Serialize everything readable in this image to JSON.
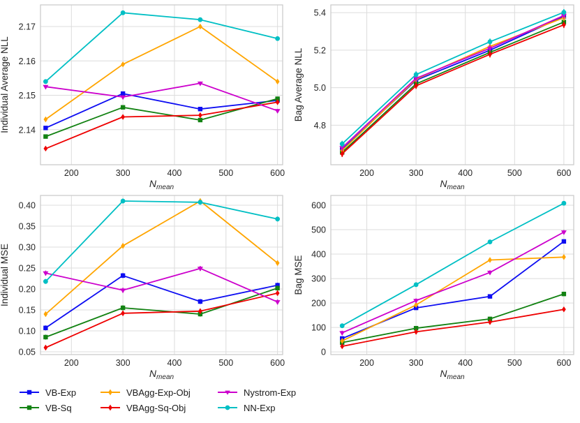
{
  "figure": {
    "xlabel_base": "N",
    "xlabel_sub": "mean",
    "background": "#ffffff",
    "grid_color": "#dcdcdc",
    "spine_color": "#c9c9c9",
    "tick_text_color": "#262626"
  },
  "legend": {
    "position": "bottom-left",
    "entries": [
      {
        "label": "VB-Exp",
        "color": "#0d0df2",
        "marker": "square"
      },
      {
        "label": "VB-Sq",
        "color": "#128212",
        "marker": "square"
      },
      {
        "label": "VBAgg-Exp-Obj",
        "color": "#ffa500",
        "marker": "diamond"
      },
      {
        "label": "VBAgg-Sq-Obj",
        "color": "#ee0000",
        "marker": "diamond"
      },
      {
        "label": "Nystrom-Exp",
        "color": "#cc00cc",
        "marker": "triangle-down"
      },
      {
        "label": "NN-Exp",
        "color": "#00bfc4",
        "marker": "circle"
      }
    ]
  },
  "chart_data": [
    {
      "id": "individual-average-nll",
      "type": "line",
      "title": "",
      "xlabel": "N_mean",
      "ylabel": "Individual Average NLL",
      "x": [
        150,
        300,
        450,
        600
      ],
      "xlim": [
        140,
        610
      ],
      "ylim": [
        2.1298,
        2.1763
      ],
      "xticks": [
        200,
        300,
        400,
        500,
        600
      ],
      "xtick_labels": [
        "200",
        "300",
        "400",
        "500",
        "600"
      ],
      "yticks": [
        2.14,
        2.15,
        2.16,
        2.17
      ],
      "ytick_labels": [
        "2.14",
        "2.15",
        "2.16",
        "2.17"
      ],
      "grid": true,
      "series": [
        {
          "name": "VB-Exp",
          "values": [
            2.1405,
            2.1505,
            2.146,
            2.1485
          ]
        },
        {
          "name": "VB-Sq",
          "values": [
            2.138,
            2.1465,
            2.1428,
            2.149
          ]
        },
        {
          "name": "VBAgg-Exp-Obj",
          "values": [
            2.143,
            2.159,
            2.17,
            2.154
          ]
        },
        {
          "name": "VBAgg-Sq-Obj",
          "values": [
            2.1345,
            2.1437,
            2.1442,
            2.148
          ]
        },
        {
          "name": "Nystrom-Exp",
          "values": [
            2.1525,
            2.1495,
            2.1535,
            2.1455
          ]
        },
        {
          "name": "NN-Exp",
          "values": [
            2.154,
            2.174,
            2.172,
            2.1665
          ]
        }
      ]
    },
    {
      "id": "bag-average-nll",
      "type": "line",
      "title": "",
      "xlabel": "N_mean",
      "ylabel": "Bag Average NLL",
      "x": [
        150,
        300,
        450,
        600
      ],
      "xlim": [
        127,
        620
      ],
      "ylim": [
        4.589,
        5.4415
      ],
      "xticks": [
        200,
        300,
        400,
        500,
        600
      ],
      "xtick_labels": [
        "200",
        "300",
        "400",
        "500",
        "600"
      ],
      "yticks": [
        4.8,
        5.0,
        5.2,
        5.4
      ],
      "ytick_labels": [
        "4.8",
        "5.0",
        "5.2",
        "5.4"
      ],
      "grid": true,
      "series": [
        {
          "name": "VB-Exp",
          "values": [
            4.67,
            5.04,
            5.2,
            5.38
          ]
        },
        {
          "name": "VB-Sq",
          "values": [
            4.655,
            5.02,
            5.188,
            5.35
          ]
        },
        {
          "name": "VBAgg-Exp-Obj",
          "values": [
            4.665,
            5.045,
            5.22,
            5.373
          ]
        },
        {
          "name": "VBAgg-Sq-Obj",
          "values": [
            4.647,
            5.01,
            5.178,
            5.335
          ]
        },
        {
          "name": "Nystrom-Exp",
          "values": [
            4.68,
            5.05,
            5.21,
            5.385
          ]
        },
        {
          "name": "NN-Exp",
          "values": [
            4.7,
            5.07,
            5.245,
            5.402
          ]
        }
      ]
    },
    {
      "id": "individual-mse",
      "type": "line",
      "title": "",
      "xlabel": "N_mean",
      "ylabel": "Individual MSE",
      "x": [
        150,
        300,
        450,
        600
      ],
      "xlim": [
        140,
        610
      ],
      "ylim": [
        0.0433,
        0.4233
      ],
      "xticks": [
        200,
        300,
        400,
        500,
        600
      ],
      "xtick_labels": [
        "200",
        "300",
        "400",
        "500",
        "600"
      ],
      "yticks": [
        0.05,
        0.1,
        0.15,
        0.2,
        0.25,
        0.3,
        0.35,
        0.4
      ],
      "ytick_labels": [
        "0.05",
        "0.10",
        "0.15",
        "0.20",
        "0.25",
        "0.30",
        "0.35",
        "0.40"
      ],
      "grid": true,
      "series": [
        {
          "name": "VB-Exp",
          "values": [
            0.107,
            0.232,
            0.17,
            0.209
          ]
        },
        {
          "name": "VB-Sq",
          "values": [
            0.085,
            0.155,
            0.14,
            0.202
          ]
        },
        {
          "name": "VBAgg-Exp-Obj",
          "values": [
            0.14,
            0.303,
            0.41,
            0.262
          ]
        },
        {
          "name": "VBAgg-Sq-Obj",
          "values": [
            0.06,
            0.142,
            0.147,
            0.19
          ]
        },
        {
          "name": "Nystrom-Exp",
          "values": [
            0.238,
            0.197,
            0.249,
            0.169
          ]
        },
        {
          "name": "NN-Exp",
          "values": [
            0.218,
            0.41,
            0.407,
            0.367
          ]
        }
      ]
    },
    {
      "id": "bag-mse",
      "type": "line",
      "title": "",
      "xlabel": "N_mean",
      "ylabel": "Bag MSE",
      "x": [
        150,
        300,
        450,
        600
      ],
      "xlim": [
        127,
        620
      ],
      "ylim": [
        -11,
        640
      ],
      "xticks": [
        200,
        300,
        400,
        500,
        600
      ],
      "xtick_labels": [
        "200",
        "300",
        "400",
        "500",
        "600"
      ],
      "yticks": [
        0,
        100,
        200,
        300,
        400,
        500,
        600
      ],
      "ytick_labels": [
        "0",
        "100",
        "200",
        "300",
        "400",
        "500",
        "600"
      ],
      "grid": true,
      "series": [
        {
          "name": "VB-Exp",
          "values": [
            55,
            180,
            227,
            452
          ]
        },
        {
          "name": "VB-Sq",
          "values": [
            38,
            97,
            135,
            237
          ]
        },
        {
          "name": "VBAgg-Exp-Obj",
          "values": [
            45,
            192,
            376,
            388
          ]
        },
        {
          "name": "VBAgg-Sq-Obj",
          "values": [
            23,
            82,
            122,
            174
          ]
        },
        {
          "name": "Nystrom-Exp",
          "values": [
            78,
            210,
            325,
            490
          ]
        },
        {
          "name": "NN-Exp",
          "values": [
            107,
            275,
            450,
            608
          ]
        }
      ]
    }
  ]
}
